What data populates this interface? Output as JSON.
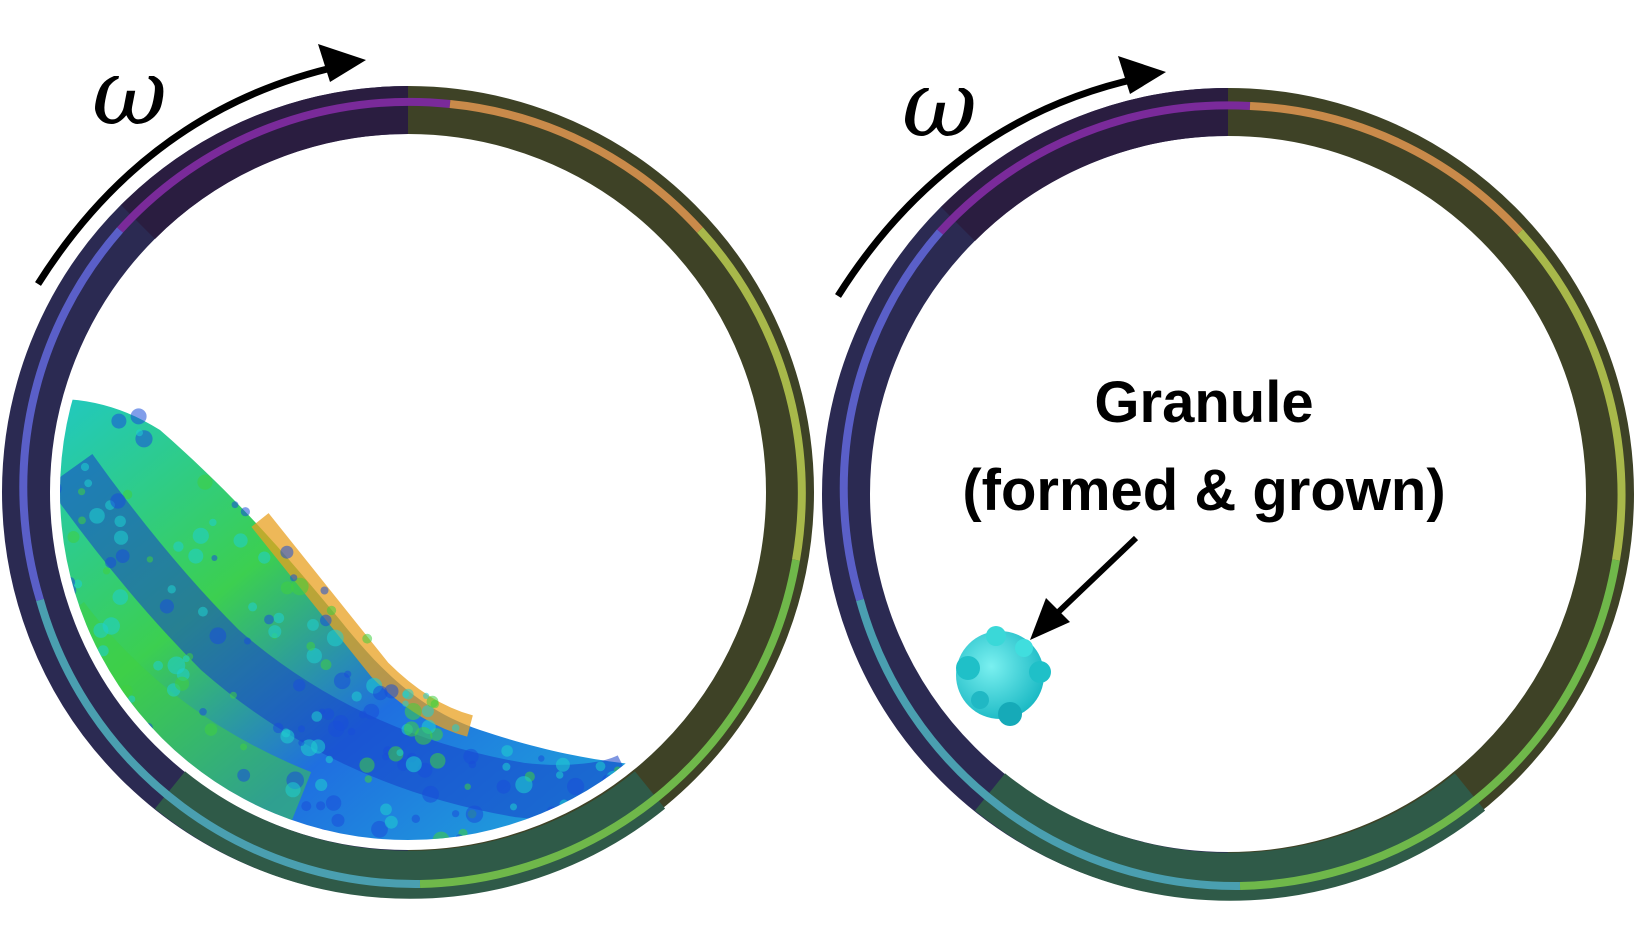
{
  "left_panel": {
    "rotation_symbol": "ω"
  },
  "right_panel": {
    "rotation_symbol": "ω",
    "annotation_line1": "Granule",
    "annotation_line2": "(formed & grown)"
  },
  "colors": {
    "ring_purple": "#7a1f8f",
    "ring_blue": "#5a5fc0",
    "ring_orange": "#c98a4a",
    "ring_yellow_green": "#a8b84a",
    "ring_green": "#6fb84a",
    "particles_blue": "#1a4fd8",
    "particles_cyan": "#1fd0d0",
    "particles_green": "#3fd040",
    "particles_orange": "#e8a020",
    "granule_cyan": "#2ad4d4"
  }
}
